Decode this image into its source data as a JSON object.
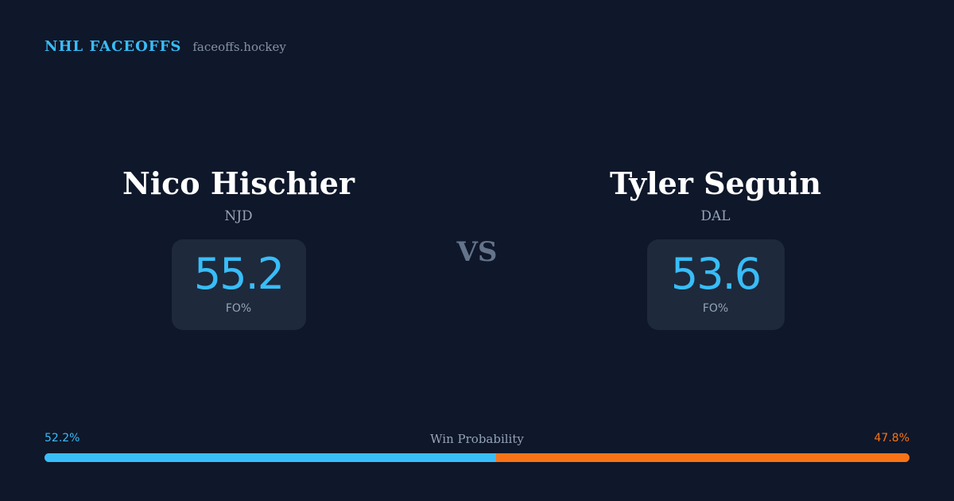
{
  "header": {
    "brand": "NHL FACEOFFS",
    "domain": "faceoffs.hockey"
  },
  "player1": {
    "name": "Nico Hischier",
    "team": "NJD",
    "stat_value": "55.2",
    "stat_label": "FO%"
  },
  "player2": {
    "name": "Tyler Seguin",
    "team": "DAL",
    "stat_value": "53.6",
    "stat_label": "FO%"
  },
  "vs_label": "VS",
  "win_probability": {
    "title": "Win Probability",
    "left_label": "52.2%",
    "right_label": "47.8%",
    "left_value": 52.2,
    "right_value": 47.8
  },
  "colors": {
    "background": "#0f172a",
    "accent_blue": "#38bdf8",
    "accent_orange": "#f97316",
    "card": "#1e293b"
  }
}
